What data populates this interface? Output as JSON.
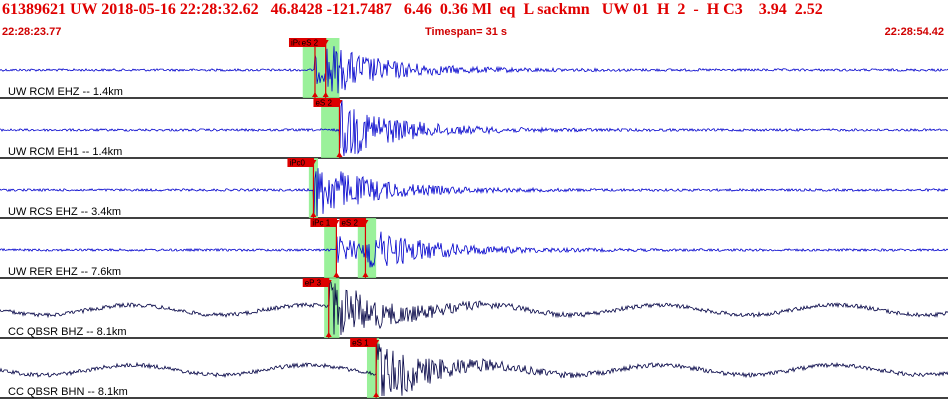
{
  "header": {
    "title": "61389621 UW 2018-05-16 22:28:32.62   46.8428 -121.7487   6.46  0.36 Ml  eq  L sackmn   UW 01  H  2  -  H C3    3.94  2.52",
    "start_time": "22:28:23.77",
    "timespan": "Timespan=  31 s",
    "end_time": "22:28:54.42"
  },
  "colors": {
    "title": "#e00000",
    "trace_blue": "#0000cc",
    "trace_dark": "#000044",
    "pick_flag": "#dd0000",
    "pick_window": "#88ee88"
  },
  "channels": [
    {
      "label": "UW RCM EHZ -- 1.4km",
      "color": "trace_blue",
      "picks": [
        {
          "text": "iPc0",
          "t": 10.3,
          "flag_side": "left",
          "window": [
            9.9,
            10.6
          ]
        },
        {
          "text": "eS 2",
          "t": 10.65,
          "flag_side": "left",
          "window": [
            10.6,
            11.1
          ]
        }
      ]
    },
    {
      "label": "UW RCM EH1 -- 1.4km",
      "color": "trace_blue",
      "picks": [
        {
          "text": "eS 2",
          "t": 11.1,
          "flag_side": "left",
          "window": [
            10.5,
            11.1
          ]
        }
      ]
    },
    {
      "label": "UW RCS EHZ -- 3.4km",
      "color": "trace_blue",
      "picks": [
        {
          "text": "iPc0",
          "t": 10.25,
          "flag_side": "left",
          "window": [
            10.1,
            10.4
          ]
        }
      ]
    },
    {
      "label": "UW RER EHZ -- 7.6km",
      "color": "trace_blue",
      "picks": [
        {
          "text": "iPc 1",
          "t": 11.0,
          "flag_side": "left",
          "window": [
            10.6,
            11.0
          ]
        },
        {
          "text": "eS 2",
          "t": 11.95,
          "flag_side": "left",
          "window": [
            11.7,
            12.3
          ]
        }
      ]
    },
    {
      "label": "CC QBSR BHZ -- 8.1km",
      "color": "trace_dark",
      "picks": [
        {
          "text": "eP 3",
          "t": 10.75,
          "flag_side": "left",
          "window": [
            10.6,
            11.1
          ]
        }
      ]
    },
    {
      "label": "CC QBSR BHN -- 8.1km",
      "color": "trace_dark",
      "picks": [
        {
          "text": "eS 1",
          "t": 12.3,
          "flag_side": "left",
          "window": [
            12.0,
            12.4
          ]
        }
      ]
    }
  ]
}
